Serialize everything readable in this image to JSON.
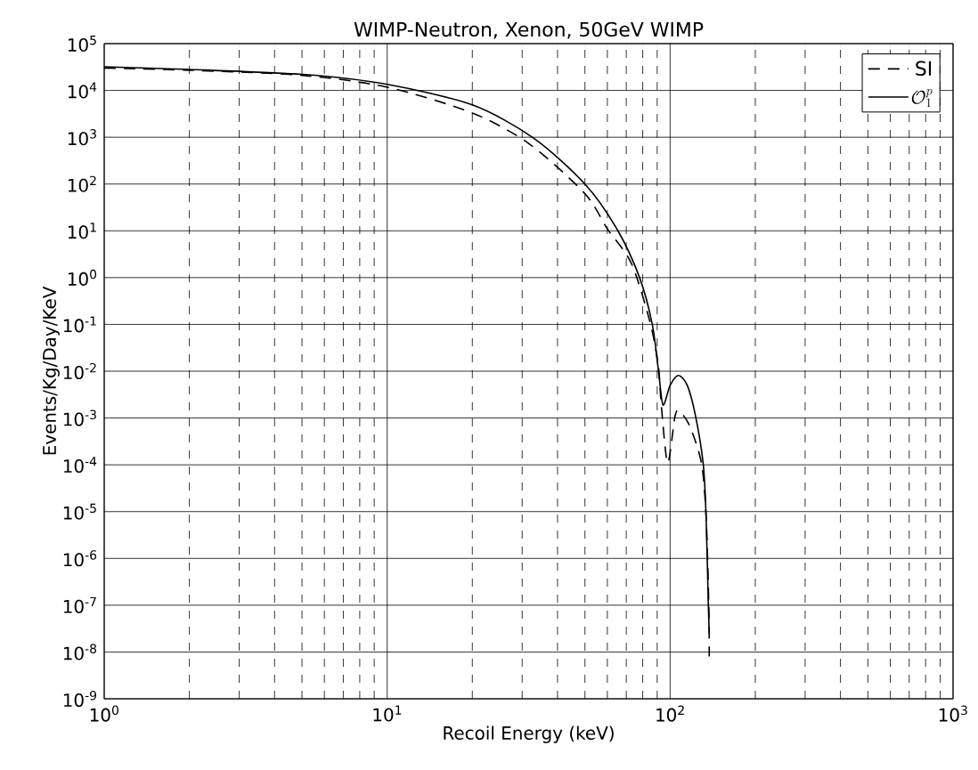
{
  "chart_data": {
    "type": "line",
    "title": "WIMP-Neutron, Xenon, 50GeV WIMP",
    "xlabel": "Recoil Energy (keV)",
    "ylabel": "Events/Kg/Day/KeV",
    "log": "xy",
    "grid": true,
    "legend": "top right",
    "marker": "none",
    "xlim": [
      1,
      1000
    ],
    "ylim": [
      1e-09,
      100000
    ],
    "xticks": [
      {
        "value": 1,
        "label": "10$^{0}$"
      },
      {
        "value": 10,
        "label": "10$^{1}$"
      },
      {
        "value": 100,
        "label": "10$^{2}$"
      },
      {
        "value": 1000,
        "label": "10$^{3}$"
      }
    ],
    "yticks": [
      {
        "value": 1e-09,
        "label": "10$^{-9}$"
      },
      {
        "value": 1e-08,
        "label": "10$^{-8}$"
      },
      {
        "value": 1e-07,
        "label": "10$^{-7}$"
      },
      {
        "value": 1e-06,
        "label": "10$^{-6}$"
      },
      {
        "value": 1e-05,
        "label": "10$^{-5}$"
      },
      {
        "value": 0.0001,
        "label": "10$^{-4}$"
      },
      {
        "value": 0.001,
        "label": "10$^{-3}$"
      },
      {
        "value": 0.01,
        "label": "10$^{-2}$"
      },
      {
        "value": 0.1,
        "label": "10$^{-1}$"
      },
      {
        "value": 1,
        "label": "10$^{0}$"
      },
      {
        "value": 10,
        "label": "10$^{1}$"
      },
      {
        "value": 100,
        "label": "10$^{2}$"
      },
      {
        "value": 1000,
        "label": "10$^{3}$"
      },
      {
        "value": 10000,
        "label": "10$^{4}$"
      },
      {
        "value": 100000,
        "label": "10$^{5}$"
      }
    ],
    "series": [
      {
        "name": "SI",
        "color": "#000000",
        "line_style": "dashed",
        "x": [
          1,
          2,
          5,
          10,
          20,
          32,
          50,
          60,
          73,
          85,
          91,
          93,
          98,
          104,
          107.5,
          117,
          129,
          134,
          137,
          137.5
        ],
        "values": [
          30000,
          27000,
          21000,
          11700,
          3300,
          700,
          62,
          11,
          2,
          0.11,
          0.012,
          0.002,
          0.00011,
          0.00107,
          0.0014,
          0.0007,
          0.00011,
          8e-06,
          1e-07,
          8e-09
        ]
      },
      {
        "name": "\\mathcal{O}_1^p",
        "color": "#000000",
        "line_style": "solid",
        "x": [
          1,
          2,
          5,
          10,
          20,
          33,
          50,
          65,
          78,
          86.5,
          91,
          94.4,
          100,
          107,
          115,
          123,
          131,
          134,
          136.5,
          137.5
        ],
        "values": [
          32000,
          28000,
          22000,
          13500,
          4900,
          950,
          100,
          10.7,
          1,
          0.1,
          0.01,
          0.0019,
          0.005,
          0.0081,
          0.005,
          0.0011,
          0.0001,
          8e-06,
          1e-07,
          2.5e-08
        ]
      }
    ]
  }
}
